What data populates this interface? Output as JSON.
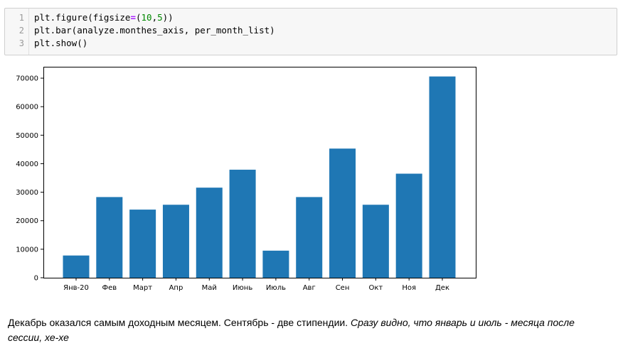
{
  "code_cell": {
    "lines": [
      {
        "number": "1",
        "parts": [
          "plt.figure(figsize",
          "=",
          "(",
          "10",
          ",",
          "5",
          "))"
        ]
      },
      {
        "number": "2",
        "text": "plt.bar(analyze.monthes_axis, per_month_list)"
      },
      {
        "number": "3",
        "text": "plt.show()"
      }
    ]
  },
  "chart_data": {
    "type": "bar",
    "categories": [
      "Янв-20",
      "Фев",
      "Март",
      "Апр",
      "Май",
      "Июнь",
      "Июль",
      "Авг",
      "Сен",
      "Окт",
      "Ноя",
      "Дек"
    ],
    "values": [
      7800,
      28300,
      23900,
      25600,
      31600,
      37900,
      9500,
      28300,
      45300,
      25600,
      36500,
      70600
    ],
    "ylim": [
      0,
      74000
    ],
    "yticks": [
      0,
      10000,
      20000,
      30000,
      40000,
      50000,
      60000,
      70000
    ],
    "bar_color": "#1f77b4",
    "grid": false,
    "title": "",
    "xlabel": "",
    "ylabel": ""
  },
  "markdown": {
    "plain": "Декабрь оказался самым доходным месяцем. Сентябрь - две стипендии.",
    "italic": "Сразу видно, что январь и июль - месяца после сессии, хе-хе"
  }
}
